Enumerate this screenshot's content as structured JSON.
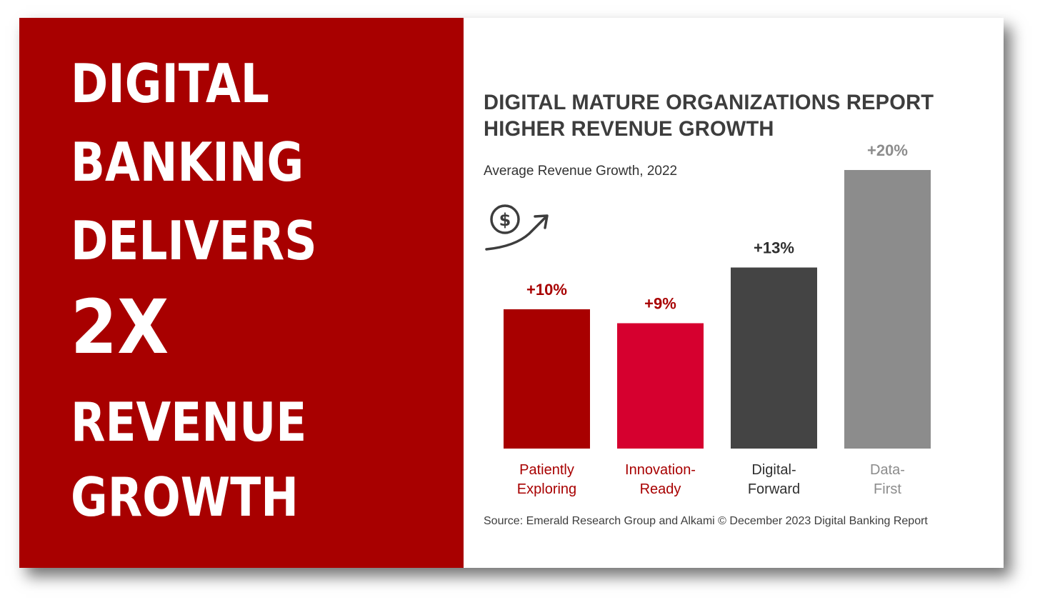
{
  "headline": {
    "lines": [
      "DIGITAL",
      "BANKING",
      "DELIVERS",
      "2X",
      "REVENUE",
      "GROWTH"
    ]
  },
  "chart": {
    "title_line1": "DIGITAL MATURE ORGANIZATIONS REPORT",
    "title_line2": "HIGHER REVENUE GROWTH",
    "subtitle": "Average Revenue Growth, 2022",
    "icon": "dollar-growth-arrow-icon",
    "source": "Source: Emerald Research Group and Alkami © December 2023 Digital Banking Report"
  },
  "colors": {
    "panel_red": "#a80000",
    "patiently_exploring": "#a80000",
    "innovation_ready": "#d6002f",
    "digital_forward": "#444444",
    "data_first": "#8c8c8c"
  },
  "chart_data": {
    "type": "bar",
    "title": "DIGITAL MATURE ORGANIZATIONS REPORT HIGHER REVENUE GROWTH",
    "subtitle": "Average Revenue Growth, 2022",
    "categories": [
      [
        "Patiently",
        "Exploring"
      ],
      [
        "Innovation-",
        "Ready"
      ],
      [
        "Digital-",
        "Forward"
      ],
      [
        "Data-",
        "First"
      ]
    ],
    "values": [
      10,
      9,
      13,
      20
    ],
    "data_labels": [
      "+10%",
      "+9%",
      "+13%",
      "+20%"
    ],
    "bar_colors": [
      "#a80000",
      "#d6002f",
      "#444444",
      "#8c8c8c"
    ],
    "label_colors": [
      "#a80000",
      "#a80000",
      "#2f2f2f",
      "#8c8c8c"
    ],
    "ylim": [
      0,
      20
    ],
    "grid": false,
    "legend": "none"
  }
}
